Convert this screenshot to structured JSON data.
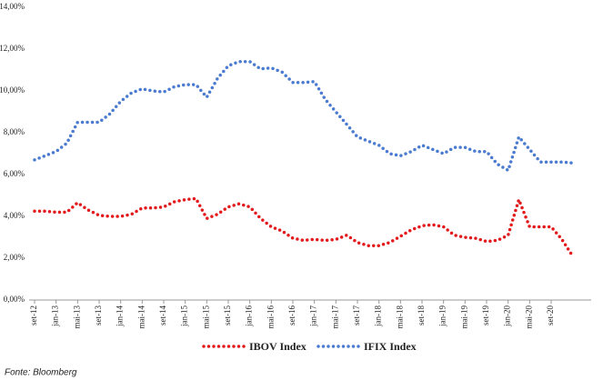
{
  "chart_data": {
    "type": "line",
    "categories": [
      "set-12",
      null,
      "jan-13",
      null,
      "mai-13",
      null,
      "set-13",
      null,
      "jan-14",
      null,
      "mai-14",
      null,
      "set-14",
      null,
      "jan-15",
      null,
      "mai-15",
      null,
      "set-15",
      null,
      "jan-16",
      null,
      "mai-16",
      null,
      "set-16",
      null,
      "jan-17",
      null,
      "mai-17",
      null,
      "set-17",
      null,
      "jan-18",
      null,
      "mai-18",
      null,
      "set-18",
      null,
      "jan-19",
      null,
      "mai-19",
      null,
      "set-19",
      null,
      "jan-20",
      null,
      "mai-20",
      null,
      "set-20",
      null,
      null
    ],
    "series": [
      {
        "name": "IBOV Index",
        "color": "#e31a1c",
        "values": [
          4.25,
          4.25,
          4.2,
          4.2,
          4.65,
          4.3,
          4.05,
          4.0,
          4.0,
          4.1,
          4.4,
          4.4,
          4.45,
          4.7,
          4.8,
          4.85,
          3.9,
          4.1,
          4.45,
          4.6,
          4.45,
          3.9,
          3.5,
          3.3,
          2.95,
          2.85,
          2.9,
          2.85,
          2.9,
          3.1,
          2.75,
          2.6,
          2.6,
          2.75,
          3.05,
          3.35,
          3.55,
          3.6,
          3.5,
          3.1,
          3.0,
          2.95,
          2.8,
          2.85,
          3.1,
          4.8,
          3.5,
          3.5,
          3.5,
          2.9,
          2.1
        ]
      },
      {
        "name": "IFIX Index",
        "color": "#4a7bd0",
        "values": [
          6.7,
          6.9,
          7.1,
          7.5,
          8.5,
          8.5,
          8.5,
          8.9,
          9.5,
          9.9,
          10.1,
          10.0,
          9.95,
          10.2,
          10.3,
          10.3,
          9.7,
          10.6,
          11.2,
          11.4,
          11.4,
          11.05,
          11.1,
          10.9,
          10.4,
          10.4,
          10.45,
          9.6,
          9.0,
          8.4,
          7.8,
          7.6,
          7.4,
          7.0,
          6.9,
          7.1,
          7.4,
          7.2,
          7.0,
          7.3,
          7.3,
          7.1,
          7.1,
          6.5,
          6.2,
          7.8,
          7.2,
          6.6,
          6.6,
          6.6,
          6.55
        ]
      }
    ],
    "ylim": [
      0,
      14
    ],
    "yticks": [
      {
        "value": 0,
        "label": "0,00%"
      },
      {
        "value": 2,
        "label": "2,00%"
      },
      {
        "value": 4,
        "label": "4,00%"
      },
      {
        "value": 6,
        "label": "6,00%"
      },
      {
        "value": 8,
        "label": "8,00%"
      },
      {
        "value": 10,
        "label": "10,00%"
      },
      {
        "value": 12,
        "label": "12,00%"
      },
      {
        "value": 14,
        "label": "14,00%"
      }
    ],
    "grid": false,
    "legend": "bottom",
    "source": "Fonte: Bloomberg"
  }
}
